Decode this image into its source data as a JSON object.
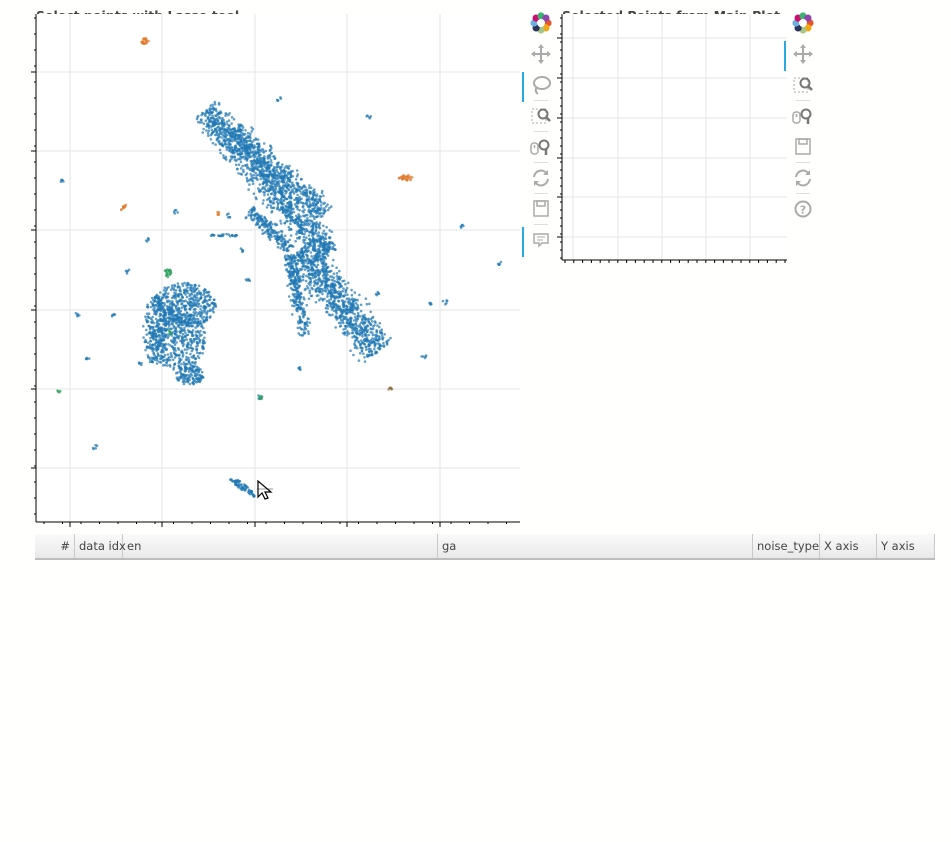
{
  "main_plot": {
    "title": "Select points with Lasso tool",
    "colors": {
      "primary": "#1f77b4",
      "cluster_a": "#e07a2e",
      "cluster_b": "#2ca05a",
      "cluster_c": "#8c6d3a"
    }
  },
  "selected_plot": {
    "title": "Selected Points from Main Plot"
  },
  "main_toolbar": {
    "tools": [
      {
        "name": "bokeh-logo-icon",
        "active": false
      },
      {
        "name": "pan-icon",
        "active": false
      },
      {
        "name": "lasso-select-icon",
        "active": true
      },
      {
        "name": "box-zoom-icon",
        "active": false
      },
      {
        "name": "wheel-zoom-icon",
        "active": false
      },
      {
        "name": "reset-icon",
        "active": false
      },
      {
        "name": "save-icon",
        "active": false
      },
      {
        "name": "hover-icon",
        "active": true
      }
    ]
  },
  "selected_toolbar": {
    "tools": [
      {
        "name": "bokeh-logo-icon",
        "active": false
      },
      {
        "name": "pan-icon",
        "active": true
      },
      {
        "name": "box-zoom-icon",
        "active": false
      },
      {
        "name": "wheel-zoom-icon",
        "active": false
      },
      {
        "name": "save-icon",
        "active": false
      },
      {
        "name": "reset-icon",
        "active": false
      },
      {
        "name": "help-icon",
        "active": false
      }
    ]
  },
  "table": {
    "columns": [
      "#",
      "data idx",
      "en",
      "ga",
      "noise_type",
      "X axis",
      "Y axis"
    ],
    "rows": []
  },
  "cursor": {
    "name": "pointer-cursor-icon"
  }
}
